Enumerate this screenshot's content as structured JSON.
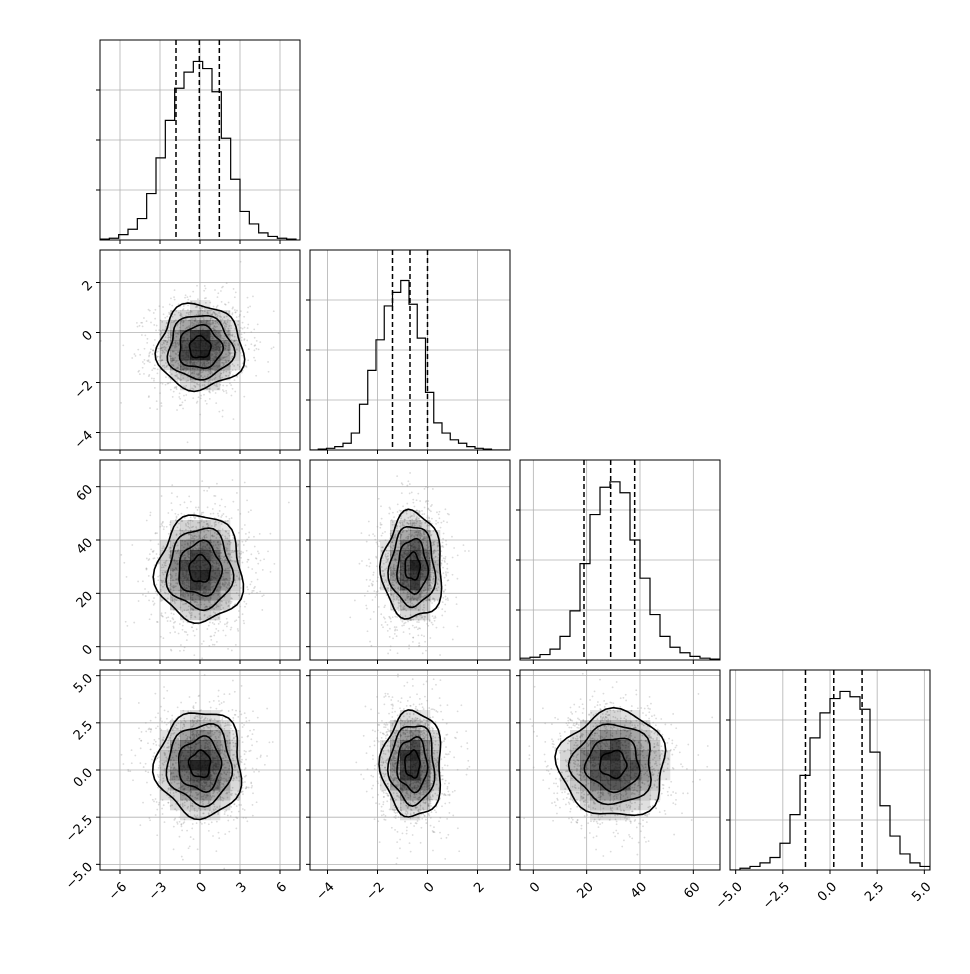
{
  "chart_data": {
    "type": "corner",
    "grid": true,
    "colors": {
      "line": "#000000",
      "grid": "#b0b0b0",
      "points": "#999999",
      "density": "#000000"
    },
    "variables": [
      {
        "range": [
          -7.5,
          7.5
        ],
        "ticks": [
          -6,
          -3,
          0,
          3,
          6
        ],
        "tick_labels": [
          "−6",
          "−3",
          "0",
          "3",
          "6"
        ],
        "quantiles": [
          -1.8,
          -0.05,
          1.45
        ],
        "hist_x_start": -7.5,
        "hist_bin_width": 0.7,
        "hist_counts": [
          0.005,
          0.01,
          0.03,
          0.06,
          0.12,
          0.26,
          0.46,
          0.67,
          0.85,
          0.94,
          1.0,
          0.96,
          0.83,
          0.57,
          0.34,
          0.16,
          0.09,
          0.04,
          0.02,
          0.01,
          0.005
        ],
        "hist_max": 1.12
      },
      {
        "range": [
          -4.7,
          3.3
        ],
        "ticks": [
          -4,
          -2,
          0,
          2
        ],
        "tick_labels": [
          "−4",
          "−2",
          "0",
          "2"
        ],
        "quantiles": [
          -1.4,
          -0.7,
          0.0
        ],
        "hist_x_start": -4.7,
        "hist_bin_width": 0.33,
        "hist_counts": [
          0.0,
          0.005,
          0.01,
          0.02,
          0.04,
          0.1,
          0.27,
          0.47,
          0.65,
          0.85,
          0.93,
          1.0,
          0.86,
          0.66,
          0.34,
          0.16,
          0.1,
          0.06,
          0.04,
          0.02,
          0.01,
          0.005,
          0.0,
          0.0
        ],
        "hist_max": 1.18
      },
      {
        "range": [
          -5,
          70
        ],
        "ticks": [
          0,
          20,
          40,
          60
        ],
        "tick_labels": [
          "0",
          "20",
          "40",
          "60"
        ],
        "quantiles": [
          19,
          29,
          38
        ],
        "hist_x_start": -5,
        "hist_bin_width": 3.75,
        "hist_counts": [
          0.01,
          0.015,
          0.03,
          0.06,
          0.13,
          0.27,
          0.53,
          0.8,
          0.95,
          0.98,
          0.92,
          0.66,
          0.45,
          0.25,
          0.13,
          0.07,
          0.04,
          0.02,
          0.01,
          0.005
        ],
        "hist_max": 1.1
      },
      {
        "range": [
          -5.3,
          5.3
        ],
        "ticks": [
          -5.0,
          -2.5,
          0.0,
          2.5,
          5.0
        ],
        "tick_labels": [
          "−5.0",
          "−2.5",
          "0.0",
          "2.5",
          "5.0"
        ],
        "quantiles": [
          -1.3,
          0.2,
          1.7
        ],
        "hist_x_start": -5.3,
        "hist_bin_width": 0.53,
        "hist_counts": [
          0.0,
          0.01,
          0.02,
          0.04,
          0.07,
          0.15,
          0.31,
          0.53,
          0.74,
          0.88,
          0.96,
          1.0,
          0.97,
          0.9,
          0.66,
          0.36,
          0.19,
          0.09,
          0.04,
          0.02
        ],
        "hist_max": 1.12
      }
    ],
    "pairs": [
      {
        "x": 0,
        "y": 1,
        "center": [
          0.0,
          -0.6
        ],
        "spread": [
          1.6,
          0.85
        ],
        "corr": 0.05
      },
      {
        "x": 0,
        "y": 2,
        "center": [
          0.0,
          29
        ],
        "spread": [
          1.6,
          10
        ],
        "corr": 0.0
      },
      {
        "x": 1,
        "y": 2,
        "center": [
          -0.6,
          30
        ],
        "spread": [
          0.6,
          10
        ],
        "corr": 0.05
      },
      {
        "x": 0,
        "y": 3,
        "center": [
          0.0,
          0.3
        ],
        "spread": [
          1.6,
          1.4
        ],
        "corr": 0.0
      },
      {
        "x": 1,
        "y": 3,
        "center": [
          -0.6,
          0.3
        ],
        "spread": [
          0.6,
          1.4
        ],
        "corr": 0.0
      },
      {
        "x": 2,
        "y": 3,
        "center": [
          30,
          0.3
        ],
        "spread": [
          10,
          1.4
        ],
        "corr": -0.05
      }
    ],
    "contour_sigmas": [
      0.5,
      1.0,
      1.5,
      2.0
    ]
  }
}
